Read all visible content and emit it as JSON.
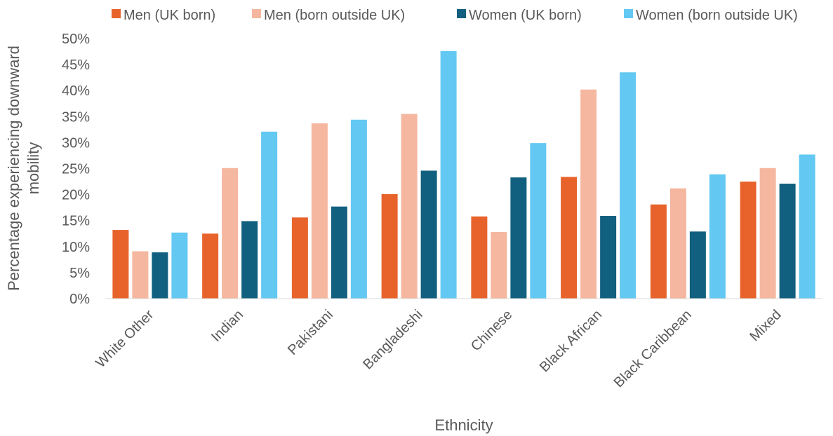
{
  "chart_data": {
    "type": "bar",
    "title": "",
    "xlabel": "Ethnicity",
    "ylabel_lines": [
      "Percentage experiencing downward",
      "mobility"
    ],
    "categories": [
      "White Other",
      "Indian",
      "Pakistani",
      "Bangladeshi",
      "Chinese",
      "Black African",
      "Black Caribbean",
      "Mixed"
    ],
    "series": [
      {
        "name": "Men (UK born)",
        "color": "#E8632C",
        "values": [
          13.2,
          12.5,
          15.6,
          20.1,
          15.8,
          23.4,
          18.1,
          22.5
        ]
      },
      {
        "name": "Men (born outside UK)",
        "color": "#F5B79F",
        "values": [
          9.1,
          25.1,
          33.7,
          35.5,
          12.8,
          40.2,
          21.2,
          25.1
        ]
      },
      {
        "name": "Women (UK born)",
        "color": "#12607F",
        "values": [
          8.9,
          14.9,
          17.7,
          24.6,
          23.3,
          15.9,
          12.9,
          22.1
        ]
      },
      {
        "name": "Women (born outside UK)",
        "color": "#63C8F2",
        "values": [
          12.7,
          32.1,
          34.4,
          47.6,
          29.9,
          43.5,
          23.9,
          27.7
        ]
      }
    ],
    "yticks": [
      "0%",
      "5%",
      "10%",
      "15%",
      "20%",
      "25%",
      "30%",
      "35%",
      "40%",
      "45%",
      "50%"
    ],
    "ylim": [
      0,
      50
    ],
    "grid": false,
    "legend_position": "top"
  }
}
